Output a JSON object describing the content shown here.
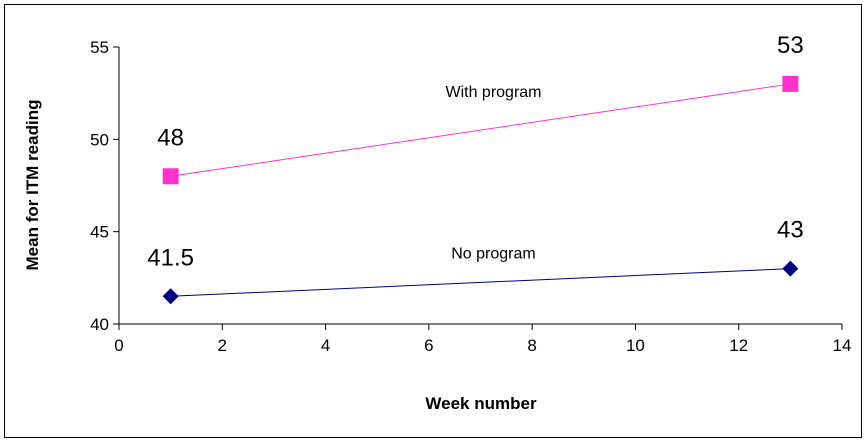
{
  "chart_data": {
    "type": "line",
    "title": "",
    "xlabel": "Week number",
    "ylabel": "Mean for ITM reading",
    "xlim": [
      0,
      14
    ],
    "ylim": [
      40,
      55
    ],
    "x_ticks": [
      "0",
      "2",
      "4",
      "6",
      "8",
      "10",
      "12",
      "14"
    ],
    "y_ticks": [
      "40",
      "45",
      "50",
      "55"
    ],
    "grid": false,
    "legend": "none",
    "series": [
      {
        "name": "With program",
        "x": [
          1,
          13
        ],
        "y": [
          48,
          53
        ],
        "data_labels": [
          "48",
          "53"
        ],
        "color": "#ff33cc",
        "marker": "square"
      },
      {
        "name": "No program",
        "x": [
          1,
          13
        ],
        "y": [
          41.5,
          43
        ],
        "data_labels": [
          "41.5",
          "43"
        ],
        "color": "#000080",
        "marker": "diamond"
      }
    ]
  }
}
